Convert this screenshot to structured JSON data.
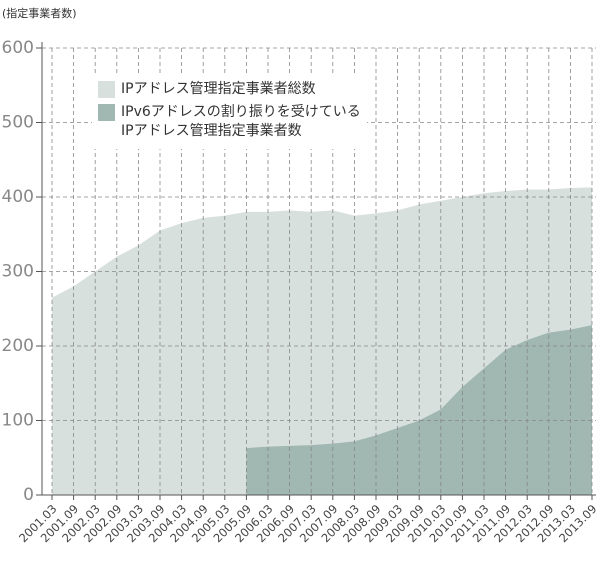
{
  "chart_data": {
    "type": "area",
    "y_label": "(指定事業者数)",
    "categories": [
      "2001.03",
      "2001.09",
      "2002.03",
      "2002.09",
      "2003.03",
      "2003.09",
      "2004.03",
      "2004.09",
      "2005.03",
      "2005.09",
      "2006.03",
      "2006.09",
      "2007.03",
      "2007.09",
      "2008.03",
      "2008.09",
      "2009.03",
      "2009.09",
      "2010.03",
      "2010.09",
      "2011.03",
      "2011.09",
      "2012.03",
      "2012.09",
      "2013.03",
      "2013.09"
    ],
    "series": [
      {
        "name": "IPアドレス管理指定事業者総数",
        "color": "#d8e0de",
        "values": [
          265,
          280,
          300,
          320,
          335,
          355,
          365,
          372,
          375,
          380,
          380,
          382,
          380,
          382,
          375,
          378,
          382,
          390,
          395,
          400,
          405,
          408,
          410,
          410,
          412,
          413
        ]
      },
      {
        "name": "IPv6アドレスの割り振りを受けている\nIPアドレス管理指定事業者数",
        "color": "#a0b7b2",
        "values": [
          null,
          null,
          null,
          null,
          null,
          null,
          null,
          null,
          null,
          63,
          65,
          66,
          67,
          69,
          72,
          80,
          90,
          100,
          115,
          145,
          170,
          195,
          208,
          218,
          222,
          228
        ]
      }
    ],
    "ylim": [
      0,
      600
    ],
    "yticks": [
      0,
      100,
      200,
      300,
      400,
      500,
      600
    ],
    "grid": true
  }
}
